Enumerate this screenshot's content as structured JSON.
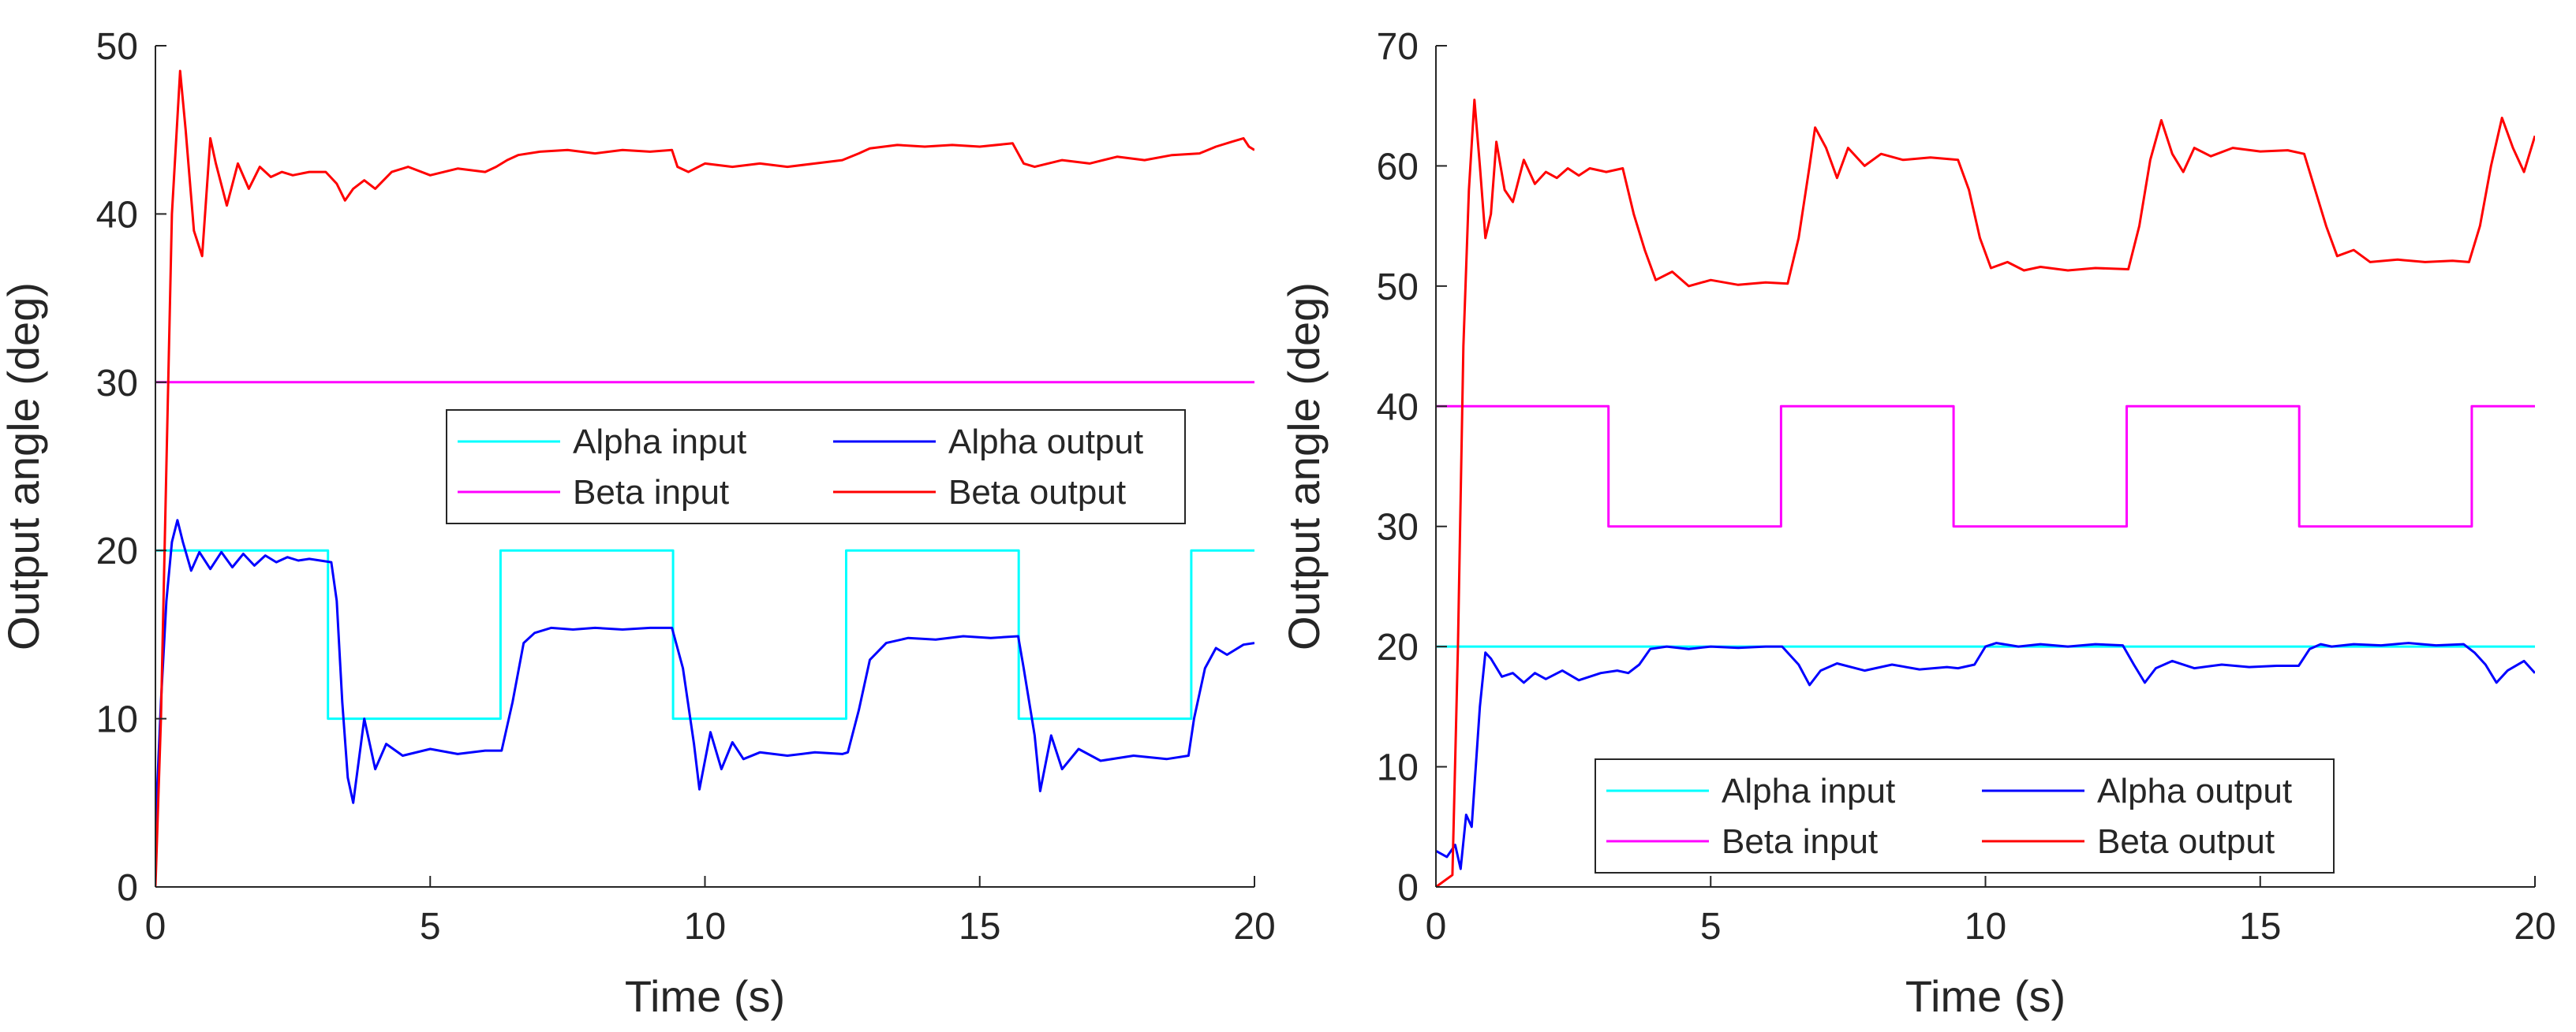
{
  "colors": {
    "alpha_input": "#00ffff",
    "alpha_output": "#0000ff",
    "beta_input": "#ff00ff",
    "beta_output": "#ff0000",
    "axis": "#262626"
  },
  "chart_data": [
    {
      "type": "line",
      "xlabel": "Time (s)",
      "ylabel": "Output angle (deg)",
      "xlim": [
        0,
        20
      ],
      "ylim": [
        0,
        50
      ],
      "xticks": [
        0,
        5,
        10,
        15,
        20
      ],
      "yticks": [
        0,
        10,
        20,
        30,
        40,
        50
      ],
      "grid": false,
      "legend": {
        "placement": "center-right",
        "entries": [
          "Alpha input",
          "Alpha output",
          "Beta input",
          "Beta output"
        ]
      },
      "series": [
        {
          "name": "Alpha input",
          "key": "alpha_input",
          "x": [
            0,
            3.14,
            3.14,
            6.28,
            6.28,
            9.42,
            9.42,
            12.57,
            12.57,
            15.71,
            15.71,
            18.85,
            18.85,
            20
          ],
          "y": [
            20,
            20,
            10,
            10,
            20,
            20,
            10,
            10,
            20,
            20,
            10,
            10,
            20,
            20
          ]
        },
        {
          "name": "Alpha output",
          "key": "alpha_output",
          "x": [
            0,
            0.1,
            0.2,
            0.3,
            0.4,
            0.5,
            0.65,
            0.8,
            1.0,
            1.2,
            1.4,
            1.6,
            1.8,
            2.0,
            2.2,
            2.4,
            2.6,
            2.8,
            3.0,
            3.2,
            3.3,
            3.4,
            3.5,
            3.6,
            3.8,
            4.0,
            4.2,
            4.5,
            5.0,
            5.5,
            6.0,
            6.3,
            6.5,
            6.7,
            6.9,
            7.2,
            7.6,
            8.0,
            8.5,
            9.0,
            9.4,
            9.6,
            9.8,
            9.9,
            10.1,
            10.3,
            10.5,
            10.7,
            11.0,
            11.5,
            12.0,
            12.5,
            12.6,
            12.8,
            13.0,
            13.3,
            13.7,
            14.2,
            14.7,
            15.2,
            15.7,
            15.8,
            16.0,
            16.1,
            16.3,
            16.5,
            16.8,
            17.2,
            17.8,
            18.4,
            18.8,
            18.9,
            19.1,
            19.3,
            19.5,
            19.8,
            20.0
          ],
          "y": [
            3.5,
            11,
            17,
            20.5,
            21.8,
            20.5,
            18.8,
            19.9,
            18.9,
            19.9,
            19.0,
            19.8,
            19.1,
            19.7,
            19.3,
            19.6,
            19.4,
            19.5,
            19.4,
            19.3,
            17.0,
            11.0,
            6.5,
            5.0,
            10.0,
            7.0,
            8.5,
            7.8,
            8.2,
            7.9,
            8.1,
            8.1,
            11.0,
            14.5,
            15.1,
            15.4,
            15.3,
            15.4,
            15.3,
            15.4,
            15.4,
            13.0,
            8.5,
            5.8,
            9.2,
            7.0,
            8.6,
            7.6,
            8.0,
            7.8,
            8.0,
            7.9,
            8.0,
            10.5,
            13.5,
            14.5,
            14.8,
            14.7,
            14.9,
            14.8,
            14.9,
            13.0,
            9.0,
            5.7,
            9.0,
            7.0,
            8.2,
            7.5,
            7.8,
            7.6,
            7.8,
            10.0,
            13.0,
            14.2,
            13.8,
            14.4,
            14.5
          ]
        },
        {
          "name": "Beta input",
          "key": "beta_input",
          "x": [
            0,
            20
          ],
          "y": [
            30,
            30
          ]
        },
        {
          "name": "Beta output",
          "key": "beta_output",
          "x": [
            0,
            0.1,
            0.2,
            0.3,
            0.45,
            0.55,
            0.7,
            0.85,
            1.0,
            1.1,
            1.3,
            1.5,
            1.7,
            1.9,
            2.1,
            2.3,
            2.5,
            2.8,
            3.1,
            3.3,
            3.45,
            3.6,
            3.8,
            4.0,
            4.3,
            4.6,
            5.0,
            5.5,
            6.0,
            6.2,
            6.4,
            6.6,
            7.0,
            7.5,
            8.0,
            8.5,
            9.0,
            9.4,
            9.5,
            9.7,
            10.0,
            10.5,
            11.0,
            11.5,
            12.0,
            12.5,
            12.8,
            13.0,
            13.5,
            14.0,
            14.5,
            15.0,
            15.6,
            15.8,
            16.0,
            16.5,
            17.0,
            17.5,
            18.0,
            18.5,
            19.0,
            19.3,
            19.6,
            19.8,
            19.9,
            20.0
          ],
          "y": [
            0,
            10,
            25,
            40,
            48.5,
            45,
            39,
            37.5,
            44.5,
            43,
            40.5,
            43,
            41.5,
            42.8,
            42.2,
            42.5,
            42.3,
            42.5,
            42.5,
            41.8,
            40.8,
            41.5,
            42,
            41.5,
            42.5,
            42.8,
            42.3,
            42.7,
            42.5,
            42.8,
            43.2,
            43.5,
            43.7,
            43.8,
            43.6,
            43.8,
            43.7,
            43.8,
            42.8,
            42.5,
            43,
            42.8,
            43,
            42.8,
            43,
            43.2,
            43.6,
            43.9,
            44.1,
            44.0,
            44.1,
            44.0,
            44.2,
            43.0,
            42.8,
            43.2,
            43.0,
            43.4,
            43.2,
            43.5,
            43.6,
            44.0,
            44.3,
            44.5,
            44.0,
            43.8
          ]
        }
      ]
    },
    {
      "type": "line",
      "xlabel": "Time (s)",
      "ylabel": "Output angle (deg)",
      "xlim": [
        0,
        20
      ],
      "ylim": [
        0,
        70
      ],
      "xticks": [
        0,
        5,
        10,
        15,
        20
      ],
      "yticks": [
        0,
        10,
        20,
        30,
        40,
        50,
        60,
        70
      ],
      "grid": false,
      "legend": {
        "placement": "bottom-center",
        "entries": [
          "Alpha input",
          "Alpha output",
          "Beta input",
          "Beta output"
        ]
      },
      "series": [
        {
          "name": "Alpha input",
          "key": "alpha_input",
          "x": [
            0,
            20
          ],
          "y": [
            20,
            20
          ]
        },
        {
          "name": "Alpha output",
          "key": "alpha_output",
          "x": [
            0,
            0.2,
            0.35,
            0.45,
            0.55,
            0.65,
            0.8,
            0.9,
            1.0,
            1.2,
            1.4,
            1.6,
            1.8,
            2.0,
            2.3,
            2.6,
            3.0,
            3.3,
            3.5,
            3.7,
            3.9,
            4.2,
            4.6,
            5.0,
            5.5,
            6.0,
            6.3,
            6.6,
            6.8,
            7.0,
            7.3,
            7.8,
            8.3,
            8.8,
            9.3,
            9.5,
            9.8,
            10.0,
            10.2,
            10.6,
            11.0,
            11.5,
            12.0,
            12.5,
            12.7,
            12.9,
            13.1,
            13.4,
            13.8,
            14.3,
            14.8,
            15.3,
            15.7,
            15.9,
            16.1,
            16.3,
            16.7,
            17.2,
            17.7,
            18.2,
            18.7,
            18.9,
            19.1,
            19.3,
            19.5,
            19.8,
            20.0
          ],
          "y": [
            3,
            2.5,
            3.5,
            1.5,
            6,
            5,
            15,
            19.5,
            19,
            17.5,
            17.8,
            17,
            17.8,
            17.3,
            18,
            17.2,
            17.8,
            18,
            17.8,
            18.5,
            19.8,
            20,
            19.8,
            20,
            19.9,
            20,
            20,
            18.5,
            16.8,
            18,
            18.6,
            18,
            18.5,
            18.1,
            18.3,
            18.2,
            18.5,
            20,
            20.3,
            20,
            20.2,
            20,
            20.2,
            20.1,
            18.5,
            17,
            18.2,
            18.8,
            18.2,
            18.5,
            18.3,
            18.4,
            18.4,
            19.8,
            20.2,
            20.0,
            20.2,
            20.1,
            20.3,
            20.1,
            20.2,
            19.5,
            18.5,
            17.0,
            18.0,
            18.8,
            17.8
          ]
        },
        {
          "name": "Beta input",
          "key": "beta_input",
          "x": [
            0,
            3.14,
            3.14,
            6.28,
            6.28,
            9.42,
            9.42,
            12.57,
            12.57,
            15.71,
            15.71,
            18.85,
            18.85,
            20
          ],
          "y": [
            40,
            40,
            30,
            30,
            40,
            40,
            30,
            30,
            40,
            40,
            30,
            30,
            40,
            40
          ]
        },
        {
          "name": "Beta output",
          "key": "beta_output",
          "x": [
            0,
            0.3,
            0.4,
            0.5,
            0.6,
            0.7,
            0.8,
            0.9,
            1.0,
            1.1,
            1.25,
            1.4,
            1.6,
            1.8,
            2.0,
            2.2,
            2.4,
            2.6,
            2.8,
            3.1,
            3.4,
            3.6,
            3.8,
            4.0,
            4.3,
            4.6,
            5.0,
            5.5,
            6.0,
            6.4,
            6.6,
            6.8,
            6.9,
            7.1,
            7.3,
            7.5,
            7.8,
            8.1,
            8.5,
            9.0,
            9.5,
            9.7,
            9.9,
            10.1,
            10.4,
            10.7,
            11.0,
            11.5,
            12.0,
            12.6,
            12.8,
            13.0,
            13.2,
            13.4,
            13.6,
            13.8,
            14.1,
            14.5,
            15.0,
            15.5,
            15.8,
            16.0,
            16.2,
            16.4,
            16.7,
            17.0,
            17.5,
            18.0,
            18.5,
            18.8,
            19.0,
            19.2,
            19.4,
            19.6,
            19.8,
            20.0
          ],
          "y": [
            0,
            1,
            20,
            45,
            58,
            65.5,
            60,
            54,
            56,
            62,
            58,
            57,
            60.5,
            58.5,
            59.5,
            59,
            59.8,
            59.2,
            59.8,
            59.5,
            59.8,
            56,
            53,
            50.5,
            51.2,
            50,
            50.5,
            50.1,
            50.3,
            50.2,
            54,
            60,
            63.2,
            61.5,
            59,
            61.5,
            60,
            61,
            60.5,
            60.7,
            60.5,
            58,
            54,
            51.5,
            52,
            51.3,
            51.6,
            51.3,
            51.5,
            51.4,
            55,
            60.5,
            63.8,
            61,
            59.5,
            61.5,
            60.8,
            61.5,
            61.2,
            61.3,
            61.0,
            58,
            55,
            52.5,
            53,
            52,
            52.2,
            52,
            52.1,
            52.0,
            55,
            60,
            64,
            61.5,
            59.5,
            62.5
          ]
        }
      ]
    }
  ]
}
